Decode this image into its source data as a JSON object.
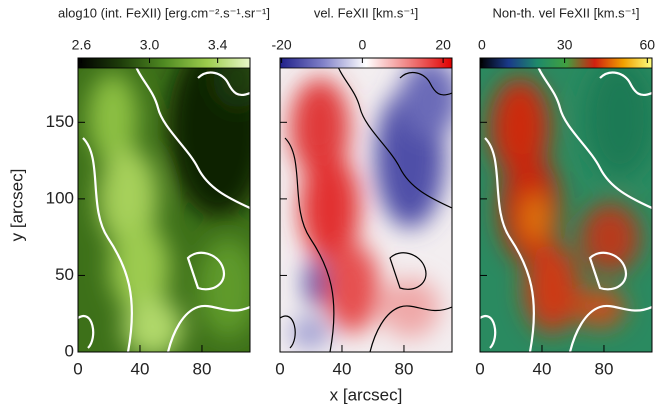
{
  "chart_data": [
    {
      "type": "image",
      "title": "alog10 (int. FeXII) [erg.cm⁻².s⁻¹.sr⁻¹]",
      "colorbar": {
        "lim": [
          2.58,
          3.59
        ],
        "ticks": [
          {
            "value": 2.6,
            "label": "2.6"
          },
          {
            "value": 3,
            "label": "3.0"
          },
          {
            "value": 3.4,
            "label": "3.4"
          }
        ],
        "colors": [
          "#000000",
          "#1e3d0a",
          "#4f8a22",
          "#9ccc4c",
          "#e8f7c8"
        ]
      },
      "xlim": [
        0,
        111
      ],
      "xticks": [
        0,
        40,
        80
      ],
      "ylim": [
        0,
        192
      ],
      "yticks": [
        0,
        50,
        100,
        150
      ],
      "ylabel": "y [arcsec]"
    },
    {
      "type": "image",
      "title": "vel. FeXII [km.s⁻¹]",
      "colorbar": {
        "lim": [
          -20.4,
          22.2
        ],
        "ticks": [
          -20,
          0,
          20
        ],
        "colors": [
          "#20208a",
          "#8080c8",
          "#ffffff",
          "#f08080",
          "#e00000"
        ]
      },
      "xlim": [
        0,
        111
      ],
      "xticks": [
        0,
        40,
        80
      ],
      "xlabel": "x [arcsec]"
    },
    {
      "type": "image",
      "title": "Non-th. vel FeXII [km.s⁻¹]",
      "colorbar": {
        "lim": [
          -0.7,
          61.7
        ],
        "ticks": [
          0,
          30,
          60
        ],
        "colors": [
          "#000000",
          "#1a3a8a",
          "#1e8a6a",
          "#40a040",
          "#d02010",
          "#f0a000",
          "#ffff80"
        ]
      },
      "xlim": [
        0,
        111
      ],
      "xticks": [
        0,
        40,
        80
      ]
    }
  ]
}
